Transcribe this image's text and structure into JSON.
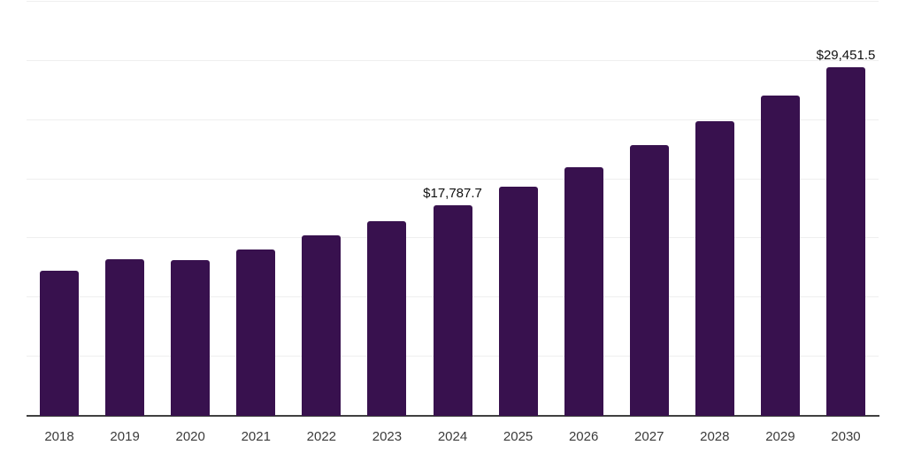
{
  "chart_data": {
    "type": "bar",
    "categories": [
      "2018",
      "2019",
      "2020",
      "2021",
      "2022",
      "2023",
      "2024",
      "2025",
      "2026",
      "2027",
      "2028",
      "2029",
      "2030"
    ],
    "values": [
      12300,
      13230,
      13190,
      14050,
      15280,
      16420,
      17787.7,
      19350,
      21045,
      22890,
      24900,
      27080,
      29451.5
    ],
    "data_labels": {
      "2024": "$17,787.7",
      "2030": "$29,451.5"
    },
    "ylim": [
      0,
      35000
    ],
    "gridline_interval": 5000,
    "grid": "horizontal-only",
    "legend_position": "none",
    "y_axis_tick_labels_visible": false,
    "styles": {
      "background": "#ffffff",
      "bar_color": "#38114e",
      "grid_color": "#efefef",
      "axis_line_color": "#404040",
      "tick_label_color": "#3b3b3b",
      "data_label_color": "#111111"
    }
  }
}
